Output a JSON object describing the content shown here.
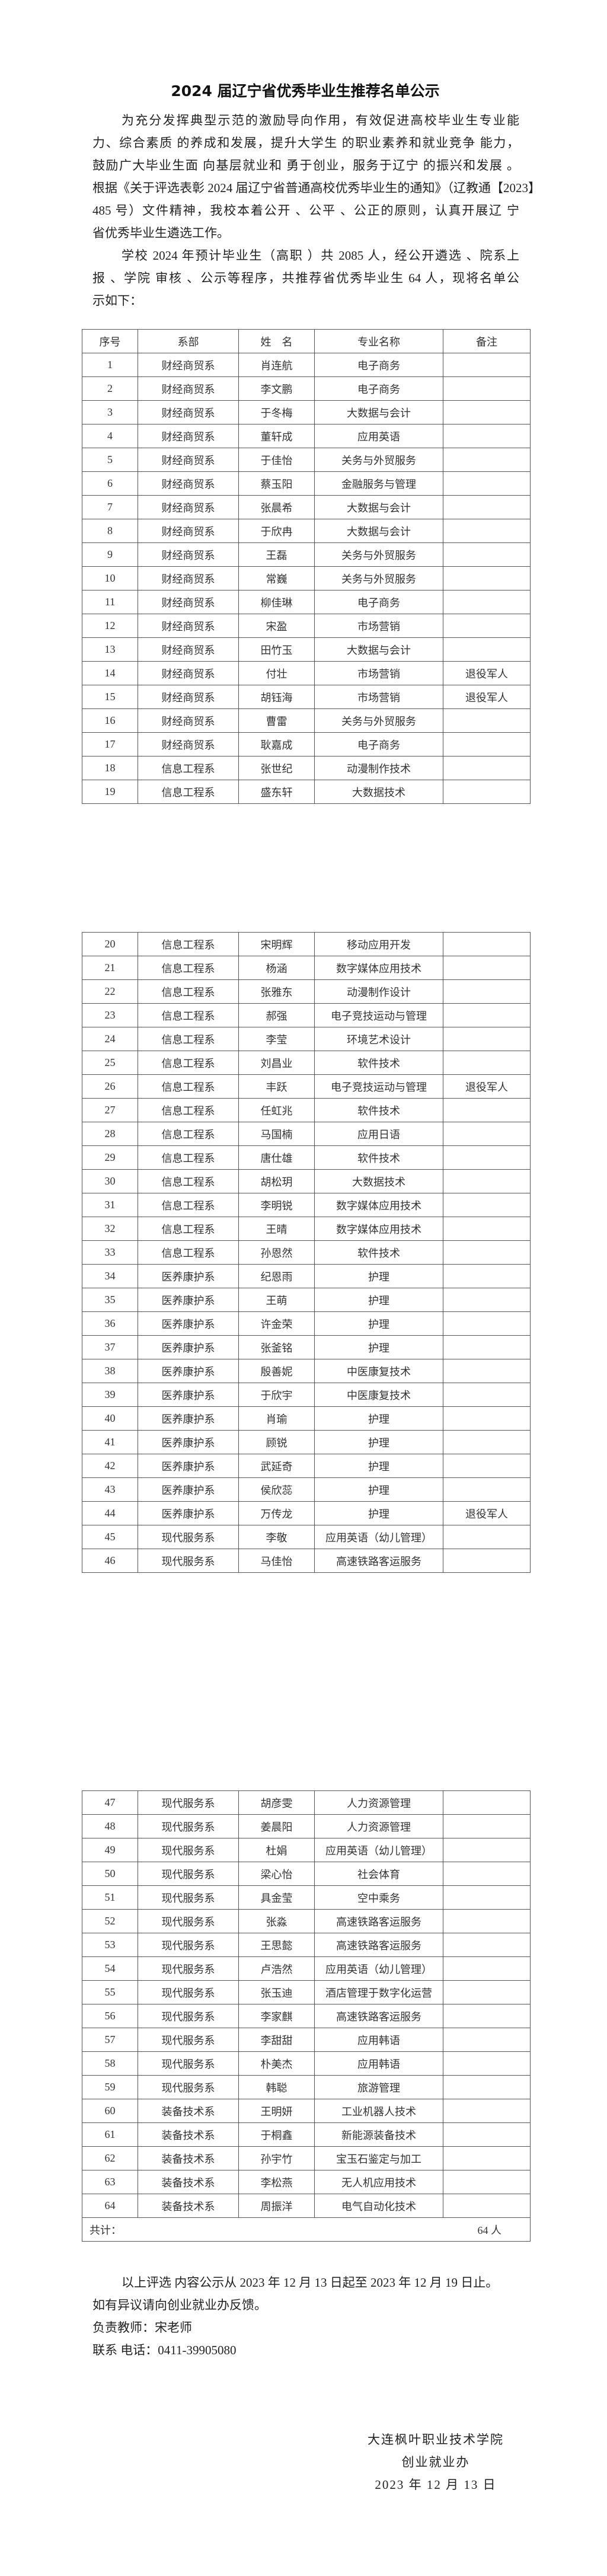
{
  "title": "2024 届辽宁省优秀毕业生推荐名单公示",
  "intro_lines": [
    "为充分发挥典型示范的激励导向作用，有效促进高校毕业生专业能",
    "力、综合素质 的养成和发展，提升大学生 的职业素养和就业竞争 能力，",
    "鼓励广大毕业生面 向基层就业和 勇于创业，服务于辽宁 的振兴和发展 。",
    "根据《关于评选表彰 2024 届辽宁省普通高校优秀毕业生的通知》（辽教通【2023】",
    "485 号）文件精神，我校本着公开 、公平 、公正的原则，认真开展辽 宁",
    "省优秀毕业生遴选工作。"
  ],
  "summary_lines": [
    "学校 2024 年预计毕业生（高职 ）共 2085 人，经公开遴选 、院系上",
    "报 、学院 审核 、公示等程序，共推荐省优秀毕业生 64 人，现将名单公",
    "示如下："
  ],
  "table": {
    "headers": [
      "序号",
      "系部",
      "姓　名",
      "专业名称",
      "备注"
    ],
    "rows": [
      [
        "1",
        "财经商贸系",
        "肖连航",
        "电子商务",
        ""
      ],
      [
        "2",
        "财经商贸系",
        "李文鹏",
        "电子商务",
        ""
      ],
      [
        "3",
        "财经商贸系",
        "于冬梅",
        "大数据与会计",
        ""
      ],
      [
        "4",
        "财经商贸系",
        "董轩成",
        "应用英语",
        ""
      ],
      [
        "5",
        "财经商贸系",
        "于佳怡",
        "关务与外贸服务",
        ""
      ],
      [
        "6",
        "财经商贸系",
        "蔡玉阳",
        "金融服务与管理",
        ""
      ],
      [
        "7",
        "财经商贸系",
        "张晨希",
        "大数据与会计",
        ""
      ],
      [
        "8",
        "财经商贸系",
        "于欣冉",
        "大数据与会计",
        ""
      ],
      [
        "9",
        "财经商贸系",
        "王磊",
        "关务与外贸服务",
        ""
      ],
      [
        "10",
        "财经商贸系",
        "常巍",
        "关务与外贸服务",
        ""
      ],
      [
        "11",
        "财经商贸系",
        "柳佳琳",
        "电子商务",
        ""
      ],
      [
        "12",
        "财经商贸系",
        "宋盈",
        "市场营销",
        ""
      ],
      [
        "13",
        "财经商贸系",
        "田竹玉",
        "大数据与会计",
        ""
      ],
      [
        "14",
        "财经商贸系",
        "付壮",
        "市场营销",
        "退役军人"
      ],
      [
        "15",
        "财经商贸系",
        "胡钰海",
        "市场营销",
        "退役军人"
      ],
      [
        "16",
        "财经商贸系",
        "曹雷",
        "关务与外贸服务",
        ""
      ],
      [
        "17",
        "财经商贸系",
        "耿嘉成",
        "电子商务",
        ""
      ],
      [
        "18",
        "信息工程系",
        "张世纪",
        "动漫制作技术",
        ""
      ],
      [
        "19",
        "信息工程系",
        "盛东轩",
        "大数据技术",
        ""
      ],
      [
        "20",
        "信息工程系",
        "宋明辉",
        "移动应用开发",
        ""
      ],
      [
        "21",
        "信息工程系",
        "杨涵",
        "数字媒体应用技术",
        ""
      ],
      [
        "22",
        "信息工程系",
        "张雅东",
        "动漫制作设计",
        ""
      ],
      [
        "23",
        "信息工程系",
        "郝强",
        "电子竞技运动与管理",
        ""
      ],
      [
        "24",
        "信息工程系",
        "李莹",
        "环境艺术设计",
        ""
      ],
      [
        "25",
        "信息工程系",
        "刘昌业",
        "软件技术",
        ""
      ],
      [
        "26",
        "信息工程系",
        "丰跃",
        "电子竞技运动与管理",
        "退役军人"
      ],
      [
        "27",
        "信息工程系",
        "任虹兆",
        "软件技术",
        ""
      ],
      [
        "28",
        "信息工程系",
        "马国楠",
        "应用日语",
        ""
      ],
      [
        "29",
        "信息工程系",
        "唐仕雄",
        "软件技术",
        ""
      ],
      [
        "30",
        "信息工程系",
        "胡松玥",
        "大数据技术",
        ""
      ],
      [
        "31",
        "信息工程系",
        "李明锐",
        "数字媒体应用技术",
        ""
      ],
      [
        "32",
        "信息工程系",
        "王晴",
        "数字媒体应用技术",
        ""
      ],
      [
        "33",
        "信息工程系",
        "孙恩然",
        "软件技术",
        ""
      ],
      [
        "34",
        "医养康护系",
        "纪恩雨",
        "护理",
        ""
      ],
      [
        "35",
        "医养康护系",
        "王萌",
        "护理",
        ""
      ],
      [
        "36",
        "医养康护系",
        "许金荣",
        "护理",
        ""
      ],
      [
        "37",
        "医养康护系",
        "张釜铭",
        "护理",
        ""
      ],
      [
        "38",
        "医养康护系",
        "殷善妮",
        "中医康复技术",
        ""
      ],
      [
        "39",
        "医养康护系",
        "于欣宇",
        "中医康复技术",
        ""
      ],
      [
        "40",
        "医养康护系",
        "肖瑜",
        "护理",
        ""
      ],
      [
        "41",
        "医养康护系",
        "顾锐",
        "护理",
        ""
      ],
      [
        "42",
        "医养康护系",
        "武延奇",
        "护理",
        ""
      ],
      [
        "43",
        "医养康护系",
        "侯欣蕊",
        "护理",
        ""
      ],
      [
        "44",
        "医养康护系",
        "万传龙",
        "护理",
        "退役军人"
      ],
      [
        "45",
        "现代服务系",
        "李敬",
        "应用英语（幼儿管理）",
        ""
      ],
      [
        "46",
        "现代服务系",
        "马佳怡",
        "高速铁路客运服务",
        ""
      ],
      [
        "47",
        "现代服务系",
        "胡彦雯",
        "人力资源管理",
        ""
      ],
      [
        "48",
        "现代服务系",
        "姜晨阳",
        "人力资源管理",
        ""
      ],
      [
        "49",
        "现代服务系",
        "杜娟",
        "应用英语（幼儿管理）",
        ""
      ],
      [
        "50",
        "现代服务系",
        "梁心怡",
        "社会体育",
        ""
      ],
      [
        "51",
        "现代服务系",
        "具金莹",
        "空中乘务",
        ""
      ],
      [
        "52",
        "现代服务系",
        "张淼",
        "高速铁路客运服务",
        ""
      ],
      [
        "53",
        "现代服务系",
        "王思懿",
        "高速铁路客运服务",
        ""
      ],
      [
        "54",
        "现代服务系",
        "卢浩然",
        "应用英语（幼儿管理）",
        ""
      ],
      [
        "55",
        "现代服务系",
        "张玉迪",
        "酒店管理于数字化运营",
        ""
      ],
      [
        "56",
        "现代服务系",
        "李家麒",
        "高速铁路客运服务",
        ""
      ],
      [
        "57",
        "现代服务系",
        "李甜甜",
        "应用韩语",
        ""
      ],
      [
        "58",
        "现代服务系",
        "朴美杰",
        "应用韩语",
        ""
      ],
      [
        "59",
        "现代服务系",
        "韩聪",
        "旅游管理",
        ""
      ],
      [
        "60",
        "装备技术系",
        "王明妍",
        "工业机器人技术",
        ""
      ],
      [
        "61",
        "装备技术系",
        "于桐鑫",
        "新能源装备技术",
        ""
      ],
      [
        "62",
        "装备技术系",
        "孙宇竹",
        "宝玉石鉴定与加工",
        ""
      ],
      [
        "63",
        "装备技术系",
        "李松燕",
        "无人机应用技术",
        ""
      ],
      [
        "64",
        "装备技术系",
        "周振洋",
        "电气自动化技术",
        ""
      ]
    ],
    "total_label": "共计：",
    "total_count": "64 人"
  },
  "footer": {
    "notice_lines": [
      "以上评选 内容公示从 2023 年 12 月 13 日起至 2023 年 12 月 19 日止。",
      "如有异议请向创业就业办反馈。"
    ],
    "teacher": "负责教师：宋老师",
    "phone": "联系 电话：0411-39905080"
  },
  "signature": {
    "school": "大连枫叶职业技术学院",
    "office": "创业就业办",
    "date": "2023 年 12 月 13 日"
  }
}
